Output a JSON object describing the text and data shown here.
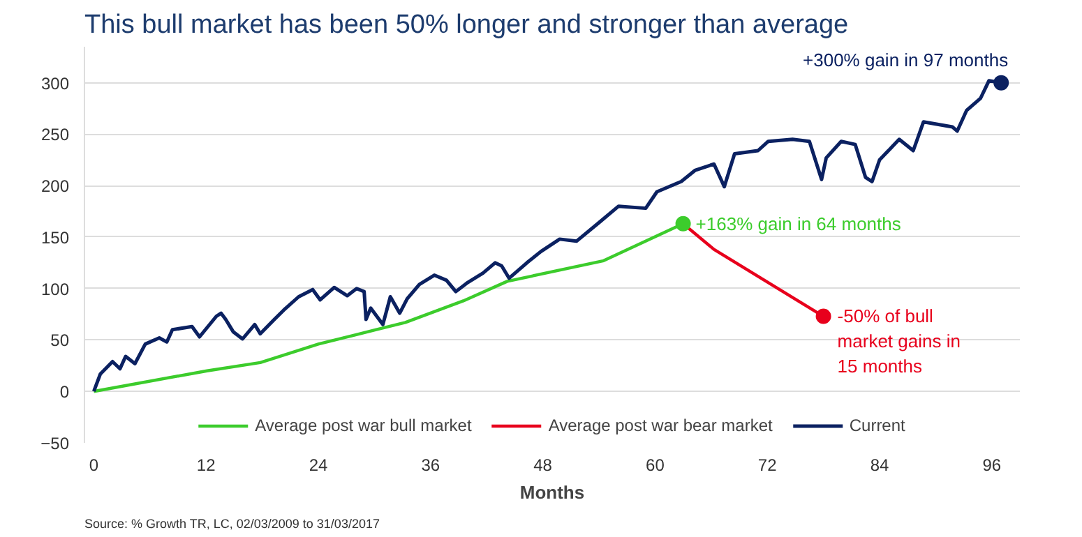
{
  "chart_data": {
    "type": "line",
    "title": "This bull market has been 50% longer and stronger than average",
    "xlabel": "Months",
    "xlim": [
      -1,
      99
    ],
    "xticks": [
      0,
      12,
      24,
      36,
      48,
      60,
      72,
      84,
      96
    ],
    "ylim": [
      -50,
      335
    ],
    "yticks": [
      -50,
      0,
      50,
      100,
      150,
      200,
      250,
      300
    ],
    "grid": "y",
    "legend": "bottom",
    "series": [
      {
        "name": "Average post war bull market",
        "color": "#3ccc2c",
        "x": [
          0,
          12.1,
          17.8,
          24,
          30.2,
          33.3,
          39.5,
          44.2,
          54.5,
          63
        ],
        "values": [
          0,
          20,
          28,
          46,
          60,
          67,
          88,
          107,
          127,
          163
        ]
      },
      {
        "name": "Average post war bear market",
        "color": "#e8001c",
        "x": [
          63,
          66.3,
          78
        ],
        "values": [
          163,
          138,
          73
        ]
      },
      {
        "name": "Current",
        "color": "#0b2161",
        "x": [
          0,
          0.7,
          2,
          2.8,
          3.4,
          4.4,
          5.5,
          7,
          7.8,
          8.4,
          10.5,
          11.3,
          13.1,
          13.6,
          14.1,
          14.9,
          15.9,
          17.2,
          17.8,
          19.3,
          20.3,
          21.9,
          23.4,
          24.2,
          25.7,
          27.1,
          28.1,
          28.9,
          29.1,
          29.6,
          30.9,
          31.7,
          32.7,
          33.5,
          34.8,
          36.4,
          37.7,
          38.7,
          40,
          41.6,
          42.9,
          43.6,
          44.4,
          46.3,
          47.8,
          49.8,
          51.6,
          54,
          56.1,
          59,
          60.2,
          62.8,
          64.3,
          66.3,
          67.4,
          68.5,
          71,
          72.1,
          74.7,
          76.5,
          77.8,
          78.3,
          79.9,
          81.4,
          82.5,
          83.2,
          84,
          86.1,
          87.6,
          88.7,
          91.8,
          92.3,
          93.3,
          94.8,
          95.7,
          97
        ],
        "values": [
          0,
          17,
          29,
          22,
          34,
          27,
          46,
          52,
          48,
          60,
          63,
          53,
          73,
          76,
          70,
          58,
          51,
          65,
          56,
          70,
          79,
          92,
          99,
          89,
          101,
          93,
          100,
          97,
          70,
          81,
          65,
          92,
          76,
          90,
          104,
          113,
          108,
          97,
          106,
          115,
          125,
          122,
          110,
          125,
          136,
          148,
          146,
          164,
          180,
          178,
          194,
          204,
          215,
          221,
          199,
          231,
          234,
          243,
          245,
          243,
          206,
          227,
          243,
          240,
          208,
          204,
          225,
          245,
          234,
          262,
          257,
          253,
          273,
          285,
          302,
          300
        ]
      }
    ],
    "annotations": [
      {
        "text": "+300% gain in 97 months",
        "x": 97,
        "y": 300
      },
      {
        "text": "+163% gain in 64 months",
        "x": 63,
        "y": 163
      },
      {
        "text": "-50% of bull market gains in 15 months",
        "x": 78,
        "y": 73
      },
      "Source: % Growth TR, LC, 02/03/2009 to 31/03/2017"
    ]
  }
}
